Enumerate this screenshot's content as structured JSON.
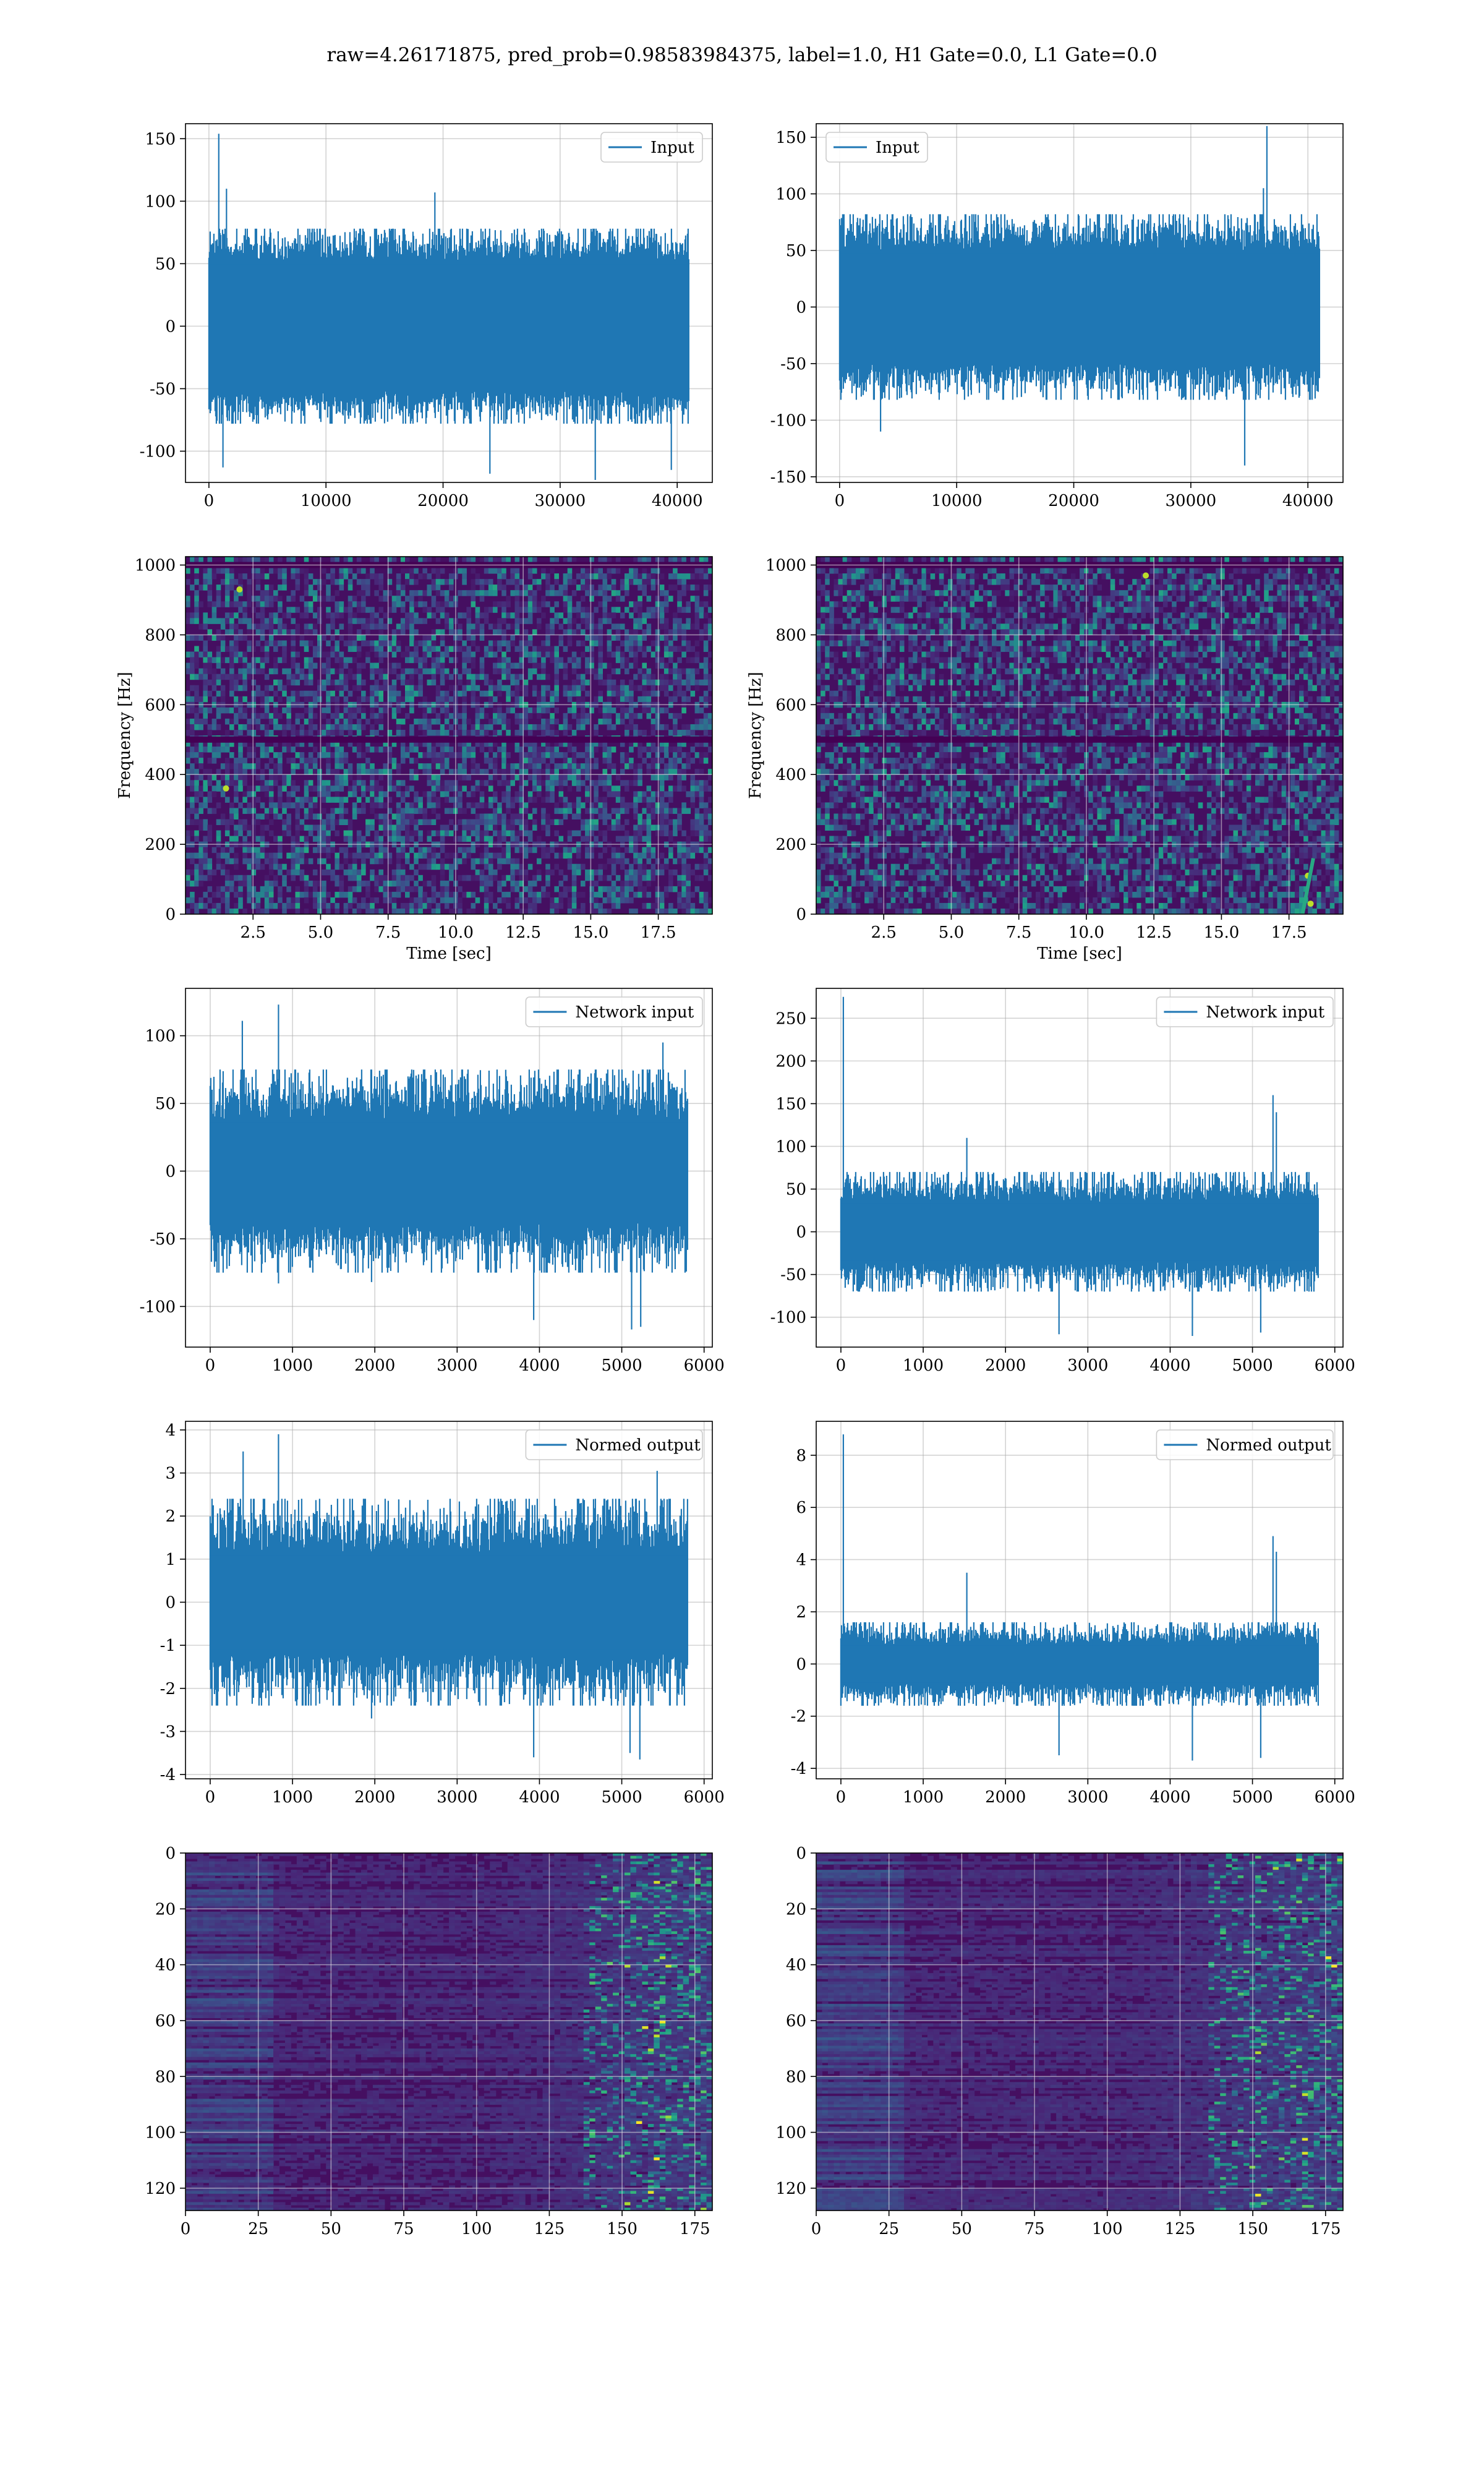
{
  "figure": {
    "title": "raw=4.26171875, pred_prob=0.98583984375, label=1.0, H1 Gate=0.0, L1 Gate=0.0",
    "line_color": "#1f77b4"
  },
  "chart_data": [
    {
      "id": "input-h1",
      "type": "line",
      "row": 0,
      "col": 0,
      "legend": "Input",
      "legend_loc": "upper right",
      "grid": true,
      "xlim": [
        -2000,
        43000
      ],
      "ylim": [
        -125,
        162
      ],
      "xticks": [
        0,
        10000,
        20000,
        30000,
        40000
      ],
      "yticks": [
        -100,
        -50,
        0,
        50,
        100,
        150
      ],
      "signal": {
        "n": 40960,
        "x_end": 40960,
        "band": 52,
        "noise_max": 78,
        "spikes": [
          [
            840,
            154
          ],
          [
            1200,
            -113
          ],
          [
            19300,
            107
          ],
          [
            24000,
            -118
          ],
          [
            33000,
            -123
          ],
          [
            39500,
            -115
          ],
          [
            1500,
            110
          ]
        ]
      }
    },
    {
      "id": "input-l1",
      "type": "line",
      "row": 0,
      "col": 1,
      "legend": "Input",
      "legend_loc": "upper left",
      "grid": true,
      "xlim": [
        -2000,
        43000
      ],
      "ylim": [
        -155,
        162
      ],
      "xticks": [
        0,
        10000,
        20000,
        30000,
        40000
      ],
      "yticks": [
        -150,
        -100,
        -50,
        0,
        50,
        100,
        150
      ],
      "signal": {
        "n": 40960,
        "x_end": 40960,
        "band": 50,
        "noise_max": 82,
        "spikes": [
          [
            36500,
            160
          ],
          [
            34600,
            -140
          ],
          [
            3500,
            -110
          ],
          [
            36200,
            105
          ]
        ]
      }
    },
    {
      "id": "spectrogram-h1",
      "type": "heatmap",
      "row": 1,
      "col": 0,
      "grid": true,
      "xlabel": "Time [sec]",
      "ylabel": "Frequency [Hz]",
      "xlim": [
        0,
        19.5
      ],
      "ylim": [
        0,
        1024
      ],
      "xticks": [
        2.5,
        5.0,
        7.5,
        10.0,
        12.5,
        15.0,
        17.5
      ],
      "yticks": [
        0,
        200,
        400,
        600,
        800,
        1000
      ],
      "colormap": "viridis",
      "features": {
        "seed": 7,
        "hbands": [
          500,
          1000
        ],
        "hot": [
          [
            1.5,
            360
          ],
          [
            2.0,
            930
          ]
        ],
        "track": []
      }
    },
    {
      "id": "spectrogram-l1",
      "type": "heatmap",
      "row": 1,
      "col": 1,
      "grid": true,
      "xlabel": "Time [sec]",
      "ylabel": "Frequency [Hz]",
      "xlim": [
        0,
        19.5
      ],
      "ylim": [
        0,
        1024
      ],
      "xticks": [
        2.5,
        5.0,
        7.5,
        10.0,
        12.5,
        15.0,
        17.5
      ],
      "yticks": [
        0,
        200,
        400,
        600,
        800,
        1000
      ],
      "colormap": "viridis",
      "features": {
        "seed": 13,
        "hbands": [
          500,
          1000
        ],
        "hot": [
          [
            12.2,
            970
          ],
          [
            18.2,
            110
          ],
          [
            18.3,
            30
          ]
        ],
        "track": [
          [
            18.0,
            0
          ],
          [
            18.4,
            160
          ]
        ]
      }
    },
    {
      "id": "network-input-h1",
      "type": "line",
      "row": 2,
      "col": 0,
      "legend": "Network input",
      "legend_loc": "upper right",
      "grid": true,
      "xlim": [
        -300,
        6100
      ],
      "ylim": [
        -130,
        135
      ],
      "xticks": [
        0,
        1000,
        2000,
        3000,
        4000,
        5000,
        6000
      ],
      "yticks": [
        -100,
        -50,
        0,
        50,
        100
      ],
      "signal": {
        "n": 5800,
        "x_end": 5800,
        "band": 38,
        "noise_max": 75,
        "spikes": [
          [
            830,
            123
          ],
          [
            390,
            111
          ],
          [
            830,
            -83
          ],
          [
            1960,
            -82
          ],
          [
            3930,
            -110
          ],
          [
            5230,
            -115
          ],
          [
            5120,
            -117
          ],
          [
            5500,
            95
          ]
        ]
      }
    },
    {
      "id": "network-input-l1",
      "type": "line",
      "row": 2,
      "col": 1,
      "legend": "Network input",
      "legend_loc": "upper right",
      "grid": true,
      "xlim": [
        -300,
        6100
      ],
      "ylim": [
        -135,
        285
      ],
      "xticks": [
        0,
        1000,
        2000,
        3000,
        4000,
        5000,
        6000
      ],
      "yticks": [
        -100,
        -50,
        0,
        50,
        100,
        150,
        200,
        250
      ],
      "signal": {
        "n": 5800,
        "x_end": 5800,
        "band": 35,
        "noise_max": 70,
        "spikes": [
          [
            30,
            275
          ],
          [
            5250,
            160
          ],
          [
            5290,
            140
          ],
          [
            2650,
            -120
          ],
          [
            4270,
            -122
          ],
          [
            1530,
            110
          ],
          [
            5100,
            -118
          ]
        ]
      }
    },
    {
      "id": "normed-output-h1",
      "type": "line",
      "row": 3,
      "col": 0,
      "legend": "Normed output",
      "legend_loc": "upper right",
      "grid": true,
      "xlim": [
        -300,
        6100
      ],
      "ylim": [
        -4.1,
        4.2
      ],
      "xticks": [
        0,
        1000,
        2000,
        3000,
        4000,
        5000,
        6000
      ],
      "yticks": [
        -4,
        -3,
        -2,
        -1,
        0,
        1,
        2,
        3,
        4
      ],
      "signal": {
        "n": 5800,
        "x_end": 5800,
        "band": 1.15,
        "noise_max": 2.4,
        "spikes": [
          [
            830,
            3.9
          ],
          [
            400,
            3.5
          ],
          [
            3930,
            -3.6
          ],
          [
            5220,
            -3.65
          ],
          [
            5100,
            -3.5
          ],
          [
            5430,
            3.05
          ],
          [
            1960,
            -2.7
          ]
        ]
      }
    },
    {
      "id": "normed-output-l1",
      "type": "line",
      "row": 3,
      "col": 1,
      "legend": "Normed output",
      "legend_loc": "upper right",
      "grid": true,
      "xlim": [
        -300,
        6100
      ],
      "ylim": [
        -4.4,
        9.3
      ],
      "xticks": [
        0,
        1000,
        2000,
        3000,
        4000,
        5000,
        6000
      ],
      "yticks": [
        -4,
        -2,
        0,
        2,
        4,
        6,
        8
      ],
      "signal": {
        "n": 5800,
        "x_end": 5800,
        "band": 0.75,
        "noise_max": 1.6,
        "spikes": [
          [
            30,
            8.8
          ],
          [
            5250,
            4.9
          ],
          [
            5290,
            4.3
          ],
          [
            2650,
            -3.5
          ],
          [
            4270,
            -3.7
          ],
          [
            5100,
            -3.6
          ],
          [
            1530,
            3.5
          ]
        ]
      }
    },
    {
      "id": "activation-map-h1",
      "type": "heatmap",
      "row": 4,
      "col": 0,
      "grid": true,
      "colormap": "viridis",
      "xlim": [
        0,
        181
      ],
      "ylim": [
        128,
        0
      ],
      "xticks": [
        0,
        25,
        50,
        75,
        100,
        125,
        150,
        175
      ],
      "yticks": [
        0,
        20,
        40,
        60,
        80,
        100,
        120
      ],
      "features": {
        "seed": 21,
        "hot_col_start": 150
      }
    },
    {
      "id": "activation-map-l1",
      "type": "heatmap",
      "row": 4,
      "col": 1,
      "grid": true,
      "colormap": "viridis",
      "xlim": [
        0,
        181
      ],
      "ylim": [
        128,
        0
      ],
      "xticks": [
        0,
        25,
        50,
        75,
        100,
        125,
        150,
        175
      ],
      "yticks": [
        0,
        20,
        40,
        60,
        80,
        100,
        120
      ],
      "features": {
        "seed": 34,
        "hot_col_start": 148
      }
    }
  ]
}
